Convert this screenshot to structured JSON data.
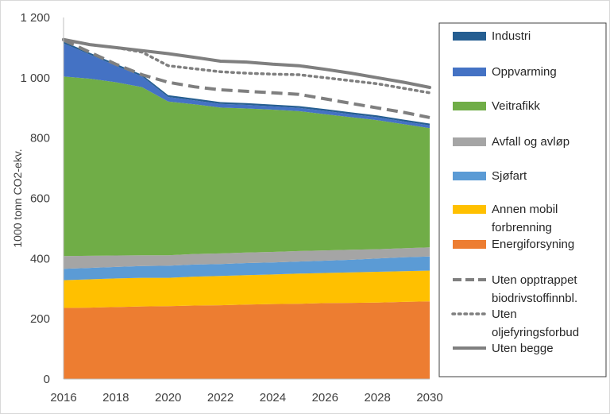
{
  "chart_data": {
    "type": "area",
    "ylabel": "1000 tonn CO2-ekv.",
    "ylim": [
      0,
      1200
    ],
    "xlim": [
      2016,
      2030
    ],
    "y_ticks": [
      "0",
      "200",
      "400",
      "600",
      "800",
      "1 000",
      "1 200"
    ],
    "x_ticks": [
      "2016",
      "2018",
      "2020",
      "2022",
      "2024",
      "2026",
      "2028",
      "2030"
    ],
    "grid": false,
    "legend_position": "right",
    "x": [
      2016,
      2017,
      2018,
      2019,
      2020,
      2021,
      2022,
      2023,
      2024,
      2025,
      2026,
      2027,
      2028,
      2029,
      2030
    ],
    "stacked_series": [
      {
        "name": "Energiforsyning",
        "color": "#ED7D31",
        "values": [
          236,
          237,
          239,
          241,
          242,
          244,
          245,
          247,
          249,
          250,
          252,
          253,
          254,
          256,
          258
        ]
      },
      {
        "name": "Annen mobil forbrenning",
        "color": "#FFC000",
        "values": [
          92,
          94,
          95,
          95,
          94,
          96,
          97,
          98,
          98,
          100,
          100,
          101,
          102,
          102,
          102
        ]
      },
      {
        "name": "Sjøfart",
        "color": "#5B9BD5",
        "values": [
          38,
          38,
          38,
          39,
          40,
          40,
          40,
          40,
          40,
          40,
          41,
          42,
          44,
          46,
          47
        ]
      },
      {
        "name": "Avfall og avløp",
        "color": "#A5A5A5",
        "values": [
          42,
          40,
          38,
          36,
          35,
          35,
          35,
          35,
          35,
          35,
          34,
          33,
          31,
          30,
          30
        ]
      },
      {
        "name": "Veitrafikk",
        "color": "#70AD47",
        "values": [
          596,
          588,
          575,
          558,
          510,
          497,
          484,
          478,
          472,
          464,
          452,
          440,
          428,
          412,
          396
        ]
      },
      {
        "name": "Oppvarming",
        "color": "#4472C4",
        "values": [
          110,
          80,
          55,
          35,
          15,
          13,
          12,
          12,
          11,
          11,
          11,
          10,
          10,
          9,
          9
        ]
      },
      {
        "name": "Industri",
        "color": "#255E91",
        "values": [
          6,
          6,
          6,
          6,
          6,
          6,
          6,
          6,
          6,
          6,
          6,
          6,
          6,
          6,
          6
        ]
      }
    ],
    "line_series": [
      {
        "name": "Uten opptrappet biodrivstoffinnbl.",
        "style": "dashed",
        "color": "#7F7F7F",
        "values": [
          1125,
          1085,
          1045,
          1010,
          985,
          970,
          960,
          955,
          950,
          945,
          930,
          915,
          900,
          885,
          868
        ]
      },
      {
        "name": "Uten oljefyringsforbud",
        "style": "dotted",
        "color": "#7F7F7F",
        "values": [
          1125,
          1110,
          1100,
          1085,
          1040,
          1030,
          1020,
          1015,
          1012,
          1010,
          1000,
          990,
          980,
          965,
          950
        ]
      },
      {
        "name": "Uten begge",
        "style": "solid",
        "color": "#7F7F7F",
        "values": [
          1127,
          1110,
          1100,
          1090,
          1080,
          1068,
          1055,
          1052,
          1045,
          1040,
          1028,
          1015,
          1000,
          985,
          968
        ]
      }
    ],
    "legend_entries": [
      {
        "label": "Industri",
        "kind": "box",
        "color": "#255E91"
      },
      {
        "label": "Oppvarming",
        "kind": "box",
        "color": "#4472C4"
      },
      {
        "label": "Veitrafikk",
        "kind": "box",
        "color": "#70AD47"
      },
      {
        "label": "Avfall og avløp",
        "kind": "box",
        "color": "#A5A5A5"
      },
      {
        "label": "Sjøfart",
        "kind": "box",
        "color": "#5B9BD5"
      },
      {
        "label": "Annen mobil\nforbrenning",
        "kind": "box",
        "color": "#FFC000"
      },
      {
        "label": "Energiforsyning",
        "kind": "box",
        "color": "#ED7D31"
      },
      {
        "label": "Uten opptrappet\nbiodrivstoffinnbl.",
        "kind": "dashed",
        "color": "#7F7F7F"
      },
      {
        "label": "Uten\noljefyringsforbud",
        "kind": "dotted",
        "color": "#7F7F7F"
      },
      {
        "label": "Uten begge",
        "kind": "solid",
        "color": "#7F7F7F"
      }
    ]
  }
}
